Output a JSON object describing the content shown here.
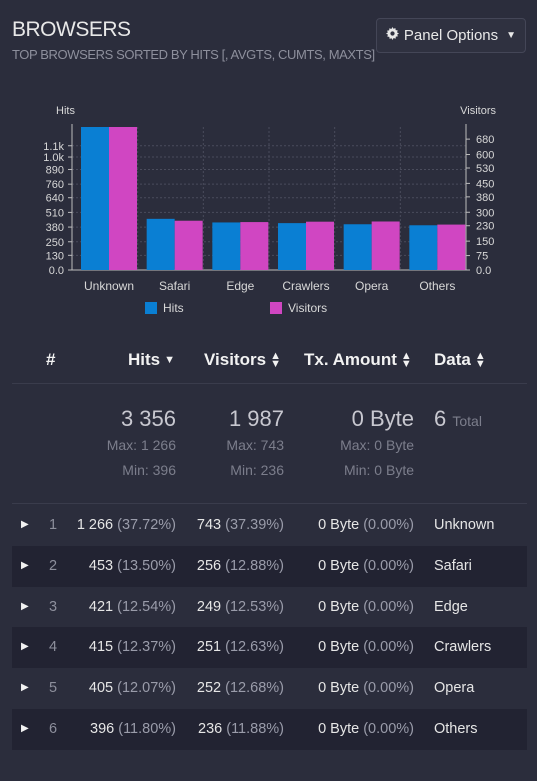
{
  "panel": {
    "title": "BROWSERS",
    "subtitle": "TOP BROWSERS SORTED BY HITS [, AVGTS, CUMTS, MAXTS]",
    "options_label": "Panel Options",
    "options_icon": "gear-icon"
  },
  "chart_data": {
    "type": "bar",
    "categories": [
      "Unknown",
      "Safari",
      "Edge",
      "Crawlers",
      "Opera",
      "Others"
    ],
    "series": [
      {
        "name": "Hits",
        "axis": "left",
        "color": "#0a7fd3",
        "values": [
          1266,
          453,
          421,
          415,
          405,
          396
        ]
      },
      {
        "name": "Visitors",
        "axis": "right",
        "color": "#d046c2",
        "values": [
          743,
          256,
          249,
          251,
          252,
          236
        ]
      }
    ],
    "ylabel_left": "Hits",
    "ylabel_right": "Visitors",
    "yticks_left": [
      "0.0",
      "130",
      "250",
      "380",
      "510",
      "640",
      "760",
      "890",
      "1.0k",
      "1.1k"
    ],
    "yticks_left_values": [
      0,
      130,
      250,
      380,
      510,
      640,
      760,
      890,
      1000,
      1100
    ],
    "yticks_right": [
      "0.0",
      "75",
      "150",
      "230",
      "300",
      "380",
      "450",
      "530",
      "600",
      "680"
    ],
    "yticks_right_values": [
      0,
      75,
      150,
      230,
      300,
      380,
      450,
      530,
      600,
      680
    ],
    "ylim_left": [
      0,
      1266
    ],
    "ylim_right": [
      0,
      743
    ],
    "grid": true,
    "legend_placement": "bottom"
  },
  "table": {
    "columns": [
      {
        "label": "#",
        "sort": "none"
      },
      {
        "label": "Hits",
        "sort": "desc"
      },
      {
        "label": "Visitors",
        "sort": "both"
      },
      {
        "label": "Tx. Amount",
        "sort": "both"
      },
      {
        "label": "Data",
        "sort": "both"
      }
    ],
    "summary": {
      "hits_total": "3 356",
      "hits_max": "Max: 1 266",
      "hits_min": "Min: 396",
      "visitors_total": "1 987",
      "visitors_max": "Max: 743",
      "visitors_min": "Min: 236",
      "tx_total": "0 Byte",
      "tx_max": "Max: 0 Byte",
      "tx_min": "Min: 0 Byte",
      "data_count": "6",
      "data_label": "Total"
    },
    "rows": [
      {
        "index": "1",
        "hits": "1 266",
        "hits_pct": "(37.72%)",
        "visitors": "743",
        "visitors_pct": "(37.39%)",
        "tx": "0 Byte",
        "tx_pct": "(0.00%)",
        "data": "Unknown"
      },
      {
        "index": "2",
        "hits": "453",
        "hits_pct": "(13.50%)",
        "visitors": "256",
        "visitors_pct": "(12.88%)",
        "tx": "0 Byte",
        "tx_pct": "(0.00%)",
        "data": "Safari"
      },
      {
        "index": "3",
        "hits": "421",
        "hits_pct": "(12.54%)",
        "visitors": "249",
        "visitors_pct": "(12.53%)",
        "tx": "0 Byte",
        "tx_pct": "(0.00%)",
        "data": "Edge"
      },
      {
        "index": "4",
        "hits": "415",
        "hits_pct": "(12.37%)",
        "visitors": "251",
        "visitors_pct": "(12.63%)",
        "tx": "0 Byte",
        "tx_pct": "(0.00%)",
        "data": "Crawlers"
      },
      {
        "index": "5",
        "hits": "405",
        "hits_pct": "(12.07%)",
        "visitors": "252",
        "visitors_pct": "(12.68%)",
        "tx": "0 Byte",
        "tx_pct": "(0.00%)",
        "data": "Opera"
      },
      {
        "index": "6",
        "hits": "396",
        "hits_pct": "(11.80%)",
        "visitors": "236",
        "visitors_pct": "(11.88%)",
        "tx": "0 Byte",
        "tx_pct": "(0.00%)",
        "data": "Others"
      }
    ]
  }
}
